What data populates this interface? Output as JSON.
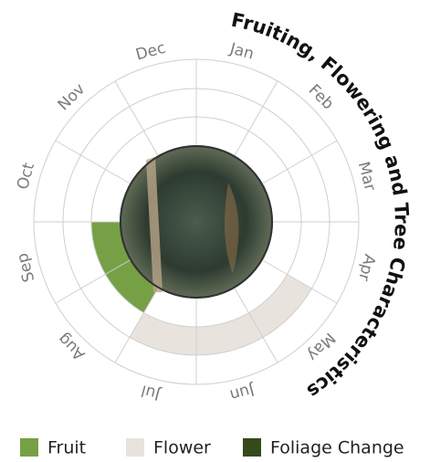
{
  "chart_data": {
    "type": "radial-calendar",
    "title": "Fruiting, Flowering and Tree Characteristics",
    "categories": [
      "Jan",
      "Feb",
      "Mar",
      "Apr",
      "May",
      "Jun",
      "Jul",
      "Aug",
      "Sep",
      "Oct",
      "Nov",
      "Dec"
    ],
    "series": [
      {
        "name": "Fruit",
        "color": "#76a046",
        "values": [
          0,
          0,
          0,
          0,
          0,
          0,
          0,
          1,
          1,
          0,
          0,
          0
        ]
      },
      {
        "name": "Flower",
        "color": "#e9e3dd",
        "values": [
          0,
          0,
          0,
          0,
          1,
          1,
          1,
          0,
          0,
          0,
          0,
          0
        ]
      },
      {
        "name": "Foliage Change",
        "color": "#354a1c",
        "values": [
          0,
          0,
          0,
          0,
          0,
          0,
          0,
          0,
          0,
          0,
          0,
          0
        ]
      }
    ]
  }
}
